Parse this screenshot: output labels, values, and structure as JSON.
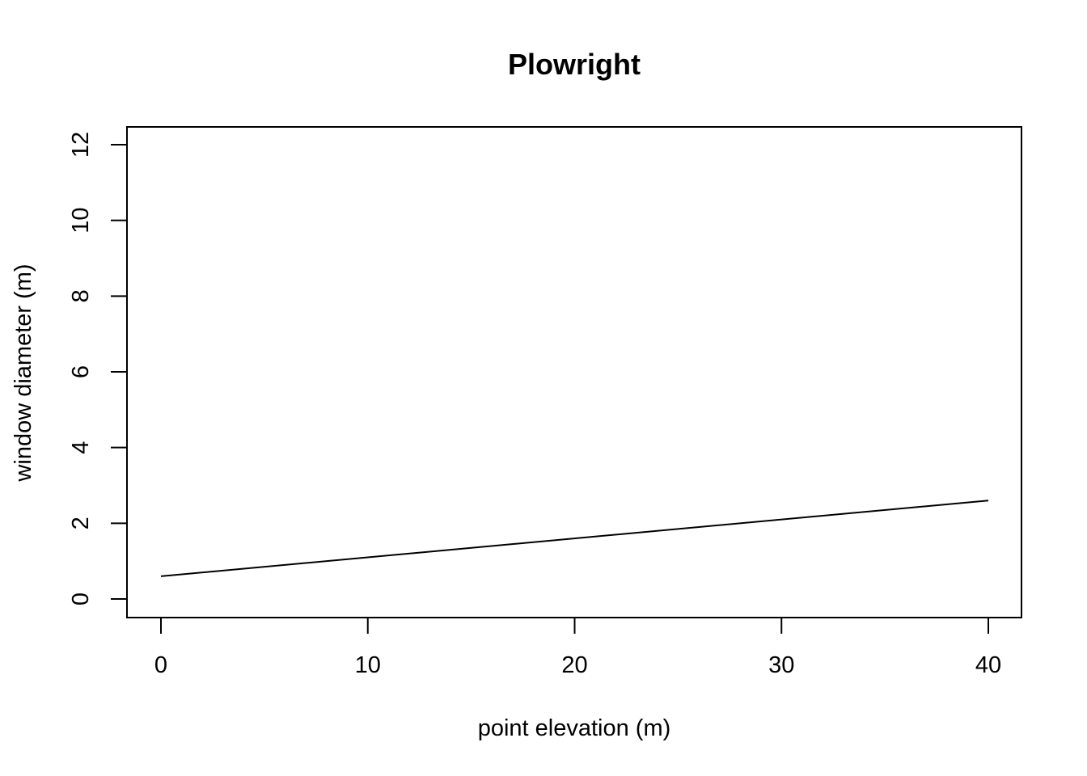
{
  "chart_data": {
    "type": "line",
    "title": "Plowright",
    "xlabel": "point elevation (m)",
    "ylabel": "window diameter (m)",
    "xlim": [
      0,
      40
    ],
    "ylim": [
      0,
      12
    ],
    "x_ticks": [
      0,
      10,
      20,
      30,
      40
    ],
    "y_ticks": [
      0,
      2,
      4,
      6,
      8,
      10,
      12
    ],
    "grid": false,
    "series": [
      {
        "x": [
          0,
          40
        ],
        "y": [
          0.6,
          2.6
        ],
        "color": "#000000"
      }
    ]
  }
}
